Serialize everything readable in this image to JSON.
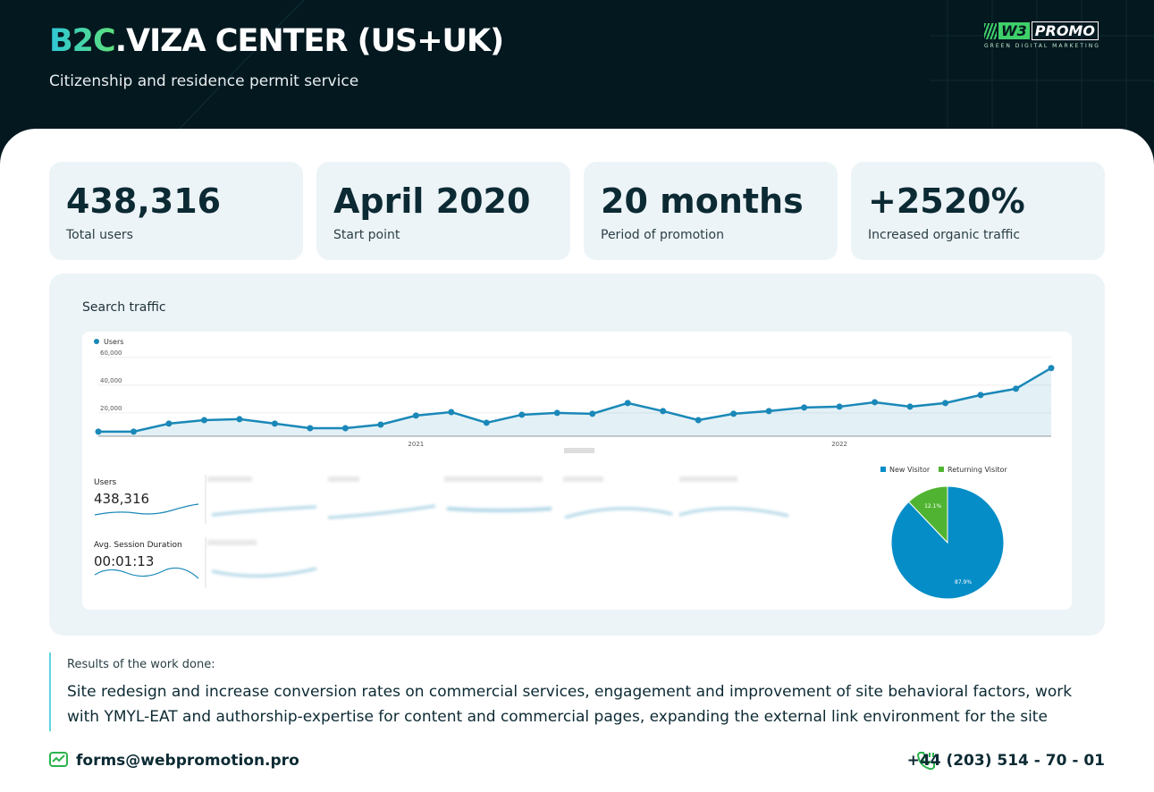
{
  "header": {
    "title_accent": "B2C",
    "title_rest": ".VIZA CENTER (US+UK)",
    "subtitle": "Citizenship and residence permit service",
    "logo": {
      "mark": "W3",
      "name": "PROMO",
      "tagline": "GREEN DIGITAL MARKETING"
    }
  },
  "stats": [
    {
      "value": "438,316",
      "label": "Total users"
    },
    {
      "value": "April 2020",
      "label": "Start point"
    },
    {
      "value": "20 months",
      "label": "Period of promotion"
    },
    {
      "value": "+2520%",
      "label": "Increased organic traffic"
    }
  ],
  "section_title": "Search traffic",
  "chart_data": [
    {
      "type": "line",
      "categories": [
        null,
        null,
        null,
        null,
        null,
        null,
        null,
        null,
        null,
        "2021",
        null,
        null,
        null,
        null,
        null,
        null,
        null,
        null,
        null,
        null,
        null,
        "2022",
        null,
        null,
        null,
        null,
        null,
        null
      ],
      "series": [
        {
          "name": "Users",
          "color": "#1a88b8",
          "values": [
            6500,
            6500,
            12300,
            14800,
            15500,
            12300,
            9000,
            9000,
            11600,
            18100,
            20600,
            12900,
            18700,
            20000,
            19400,
            27100,
            21300,
            14800,
            19400,
            21300,
            23900,
            24500,
            27700,
            24500,
            27100,
            32900,
            37400,
            52300
          ]
        }
      ],
      "ylim": [
        0,
        65000
      ],
      "yticks": [
        {
          "value": 20000,
          "label": "20,000"
        },
        {
          "value": 40000,
          "label": "40,000"
        },
        {
          "value": 60000,
          "label": "60,000"
        }
      ],
      "grid": true
    },
    {
      "type": "pie",
      "categories": [
        "New Visitor",
        "Returning Visitor"
      ],
      "values": [
        87.9,
        12.1
      ],
      "value_labels": [
        "87.9%",
        "12.1%"
      ],
      "colors": [
        "#058dc7",
        "#50b432"
      ]
    }
  ],
  "metrics": [
    {
      "label": "Users",
      "value": "438,316"
    },
    {
      "label": "Avg. Session Duration",
      "value": "00:01:13"
    }
  ],
  "results": {
    "label": "Results of the work done:",
    "text": "Site redesign and increase conversion rates on commercial services, engagement and improvement of site behavioral factors, work with YMYL-EAT and authorship-expertise for content and commercial pages, expanding the external link environment for the site"
  },
  "footer": {
    "email": "forms@webpromotion.pro",
    "phone": "+44 (203) 514 - 70 - 01"
  }
}
